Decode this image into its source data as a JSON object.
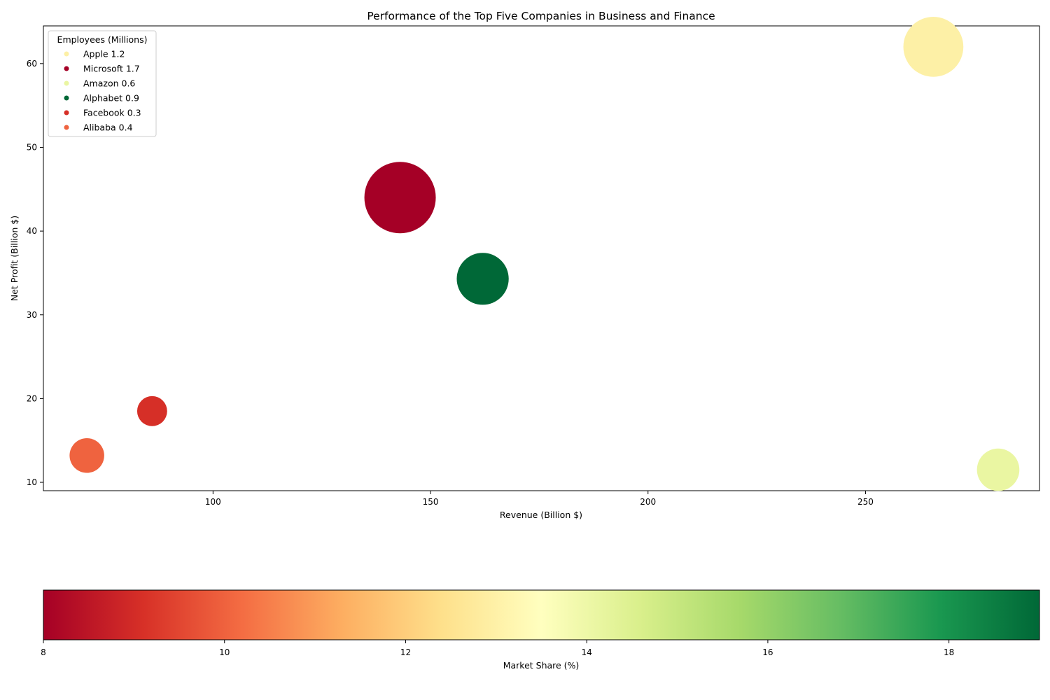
{
  "chart_data": {
    "type": "scatter",
    "title": "Performance of the Top Five Companies in Business and Finance",
    "xlabel": "Revenue (Billion $)",
    "ylabel": "Net Profit (Billion $)",
    "xlim": [
      61,
      290
    ],
    "ylim": [
      9,
      64.5
    ],
    "x_ticks": [
      100,
      150,
      200,
      250
    ],
    "y_ticks": [
      10,
      20,
      30,
      40,
      50,
      60
    ],
    "grid": false,
    "legend": {
      "title": "Employees (Millions)",
      "placement": "top-left",
      "entries": [
        "Apple 1.2",
        "Microsoft 1.7",
        "Amazon 0.6",
        "Alphabet 0.9",
        "Facebook 0.3",
        "Alibaba 0.4"
      ]
    },
    "points": [
      {
        "name": "Apple",
        "revenue": 265.6,
        "net_profit": 62.0,
        "employees_millions": 1.2,
        "market_share": 12.9,
        "color": "#fdf0a6"
      },
      {
        "name": "Microsoft",
        "revenue": 143.0,
        "net_profit": 44.0,
        "employees_millions": 1.7,
        "market_share": 8.0,
        "color": "#a50026"
      },
      {
        "name": "Amazon",
        "revenue": 280.5,
        "net_profit": 11.5,
        "employees_millions": 0.6,
        "market_share": 14.1,
        "color": "#eaf6a2"
      },
      {
        "name": "Alphabet",
        "revenue": 162.0,
        "net_profit": 34.3,
        "employees_millions": 0.9,
        "market_share": 19.0,
        "color": "#006837"
      },
      {
        "name": "Facebook",
        "revenue": 86.0,
        "net_profit": 18.5,
        "employees_millions": 0.3,
        "market_share": 9.1,
        "color": "#d62f27"
      },
      {
        "name": "Alibaba",
        "revenue": 71.0,
        "net_profit": 13.2,
        "employees_millions": 0.4,
        "market_share": 10.0,
        "color": "#ef633f"
      }
    ],
    "colorbar": {
      "label": "Market Share (%)",
      "range": [
        8,
        19
      ],
      "ticks": [
        8,
        10,
        12,
        14,
        16,
        18
      ],
      "colormap": "RdYlGn",
      "stops": [
        "#a50026",
        "#d73027",
        "#f46d43",
        "#fdae61",
        "#fee08b",
        "#ffffbf",
        "#d9ef8b",
        "#a6d96a",
        "#66bd63",
        "#1a9850",
        "#006837"
      ]
    }
  }
}
